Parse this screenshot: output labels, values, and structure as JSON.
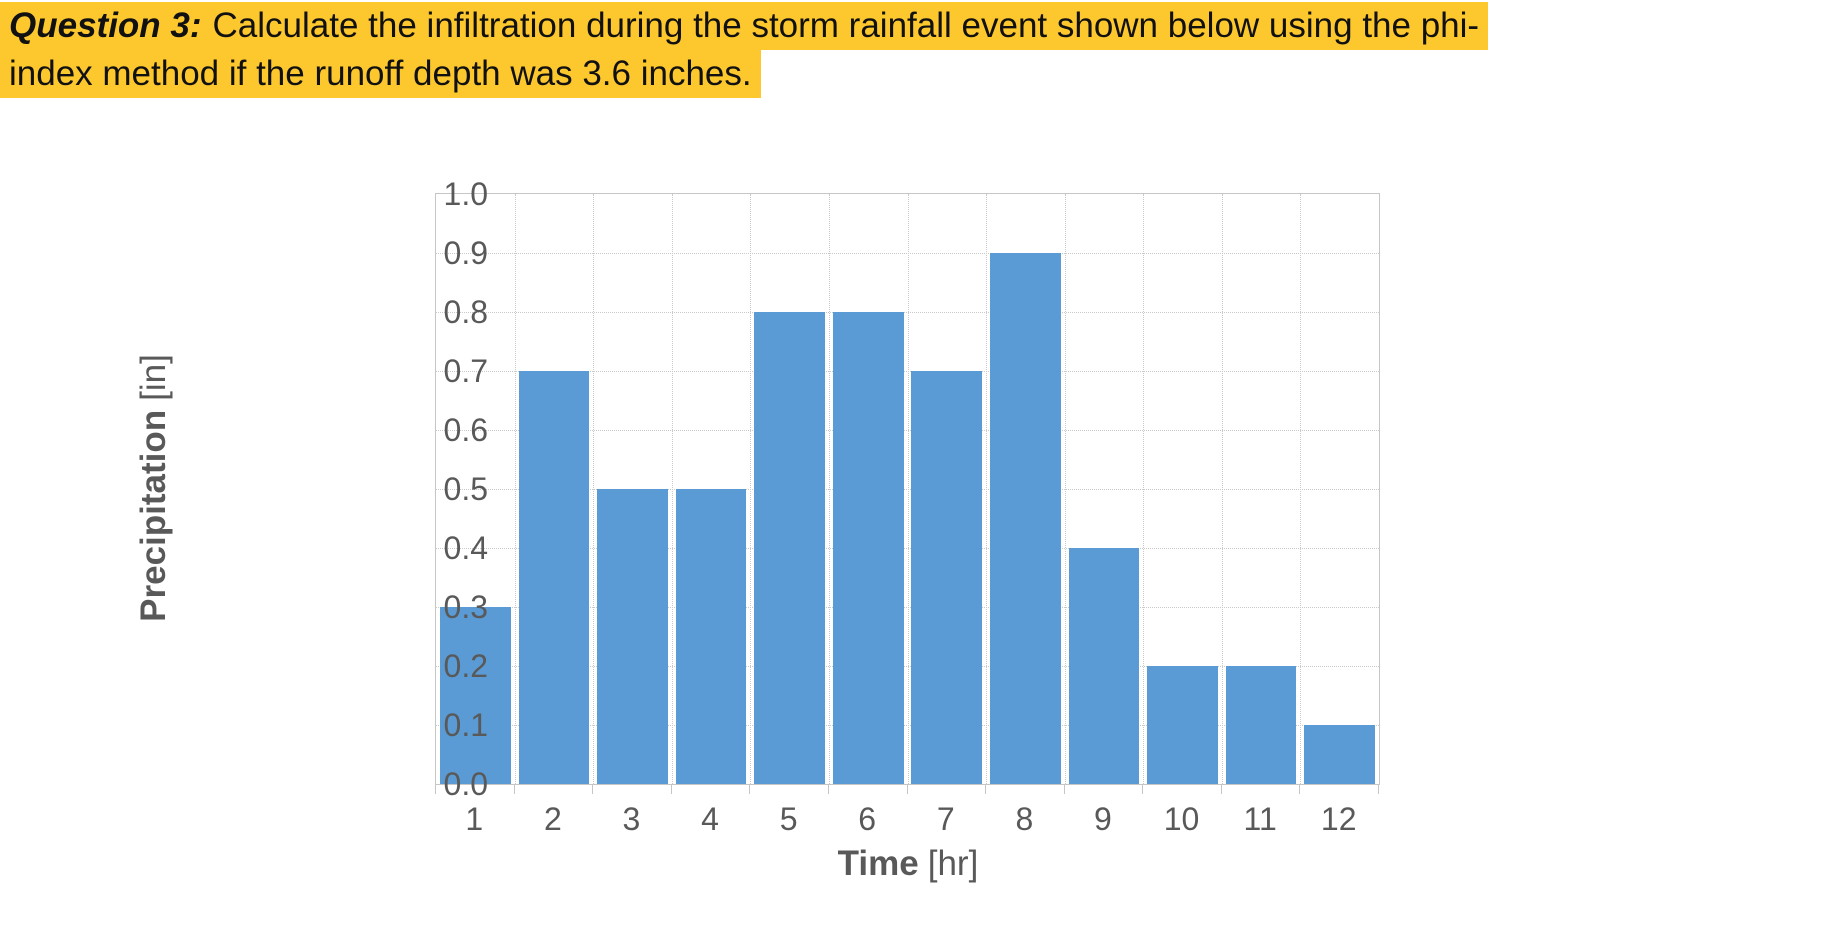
{
  "question": {
    "label": "Question 3:",
    "line1_rest": "Calculate the infiltration during the storm rainfall event shown below using the phi-",
    "line2": "index method if the runoff depth was 3.6 inches.",
    "highlight_color": "#FDC72E"
  },
  "chart_data": {
    "type": "bar",
    "title": "",
    "categories": [
      "1",
      "2",
      "3",
      "4",
      "5",
      "6",
      "7",
      "8",
      "9",
      "10",
      "11",
      "12"
    ],
    "values": [
      0.3,
      0.7,
      0.5,
      0.5,
      0.8,
      0.8,
      0.7,
      0.9,
      0.4,
      0.2,
      0.2,
      0.1
    ],
    "xlabel": "Time [hr]",
    "ylabel": "Precipitation [in]",
    "xlabel_parts": {
      "bold": "Time",
      "unit": "[hr]"
    },
    "ylabel_parts": {
      "bold": "Precipitation",
      "unit": "[in]"
    },
    "ylim": [
      0.0,
      1.0
    ],
    "ytick_labels": [
      "0.0",
      "0.1",
      "0.2",
      "0.3",
      "0.4",
      "0.5",
      "0.6",
      "0.7",
      "0.8",
      "0.9",
      "1.0"
    ],
    "grid": "both-dotted",
    "legend": "none",
    "bar_color": "#5B9BD5",
    "grid_color": "#C9C9C9",
    "tick_text_color": "#595959",
    "bar_gap_fraction": 0.1
  }
}
